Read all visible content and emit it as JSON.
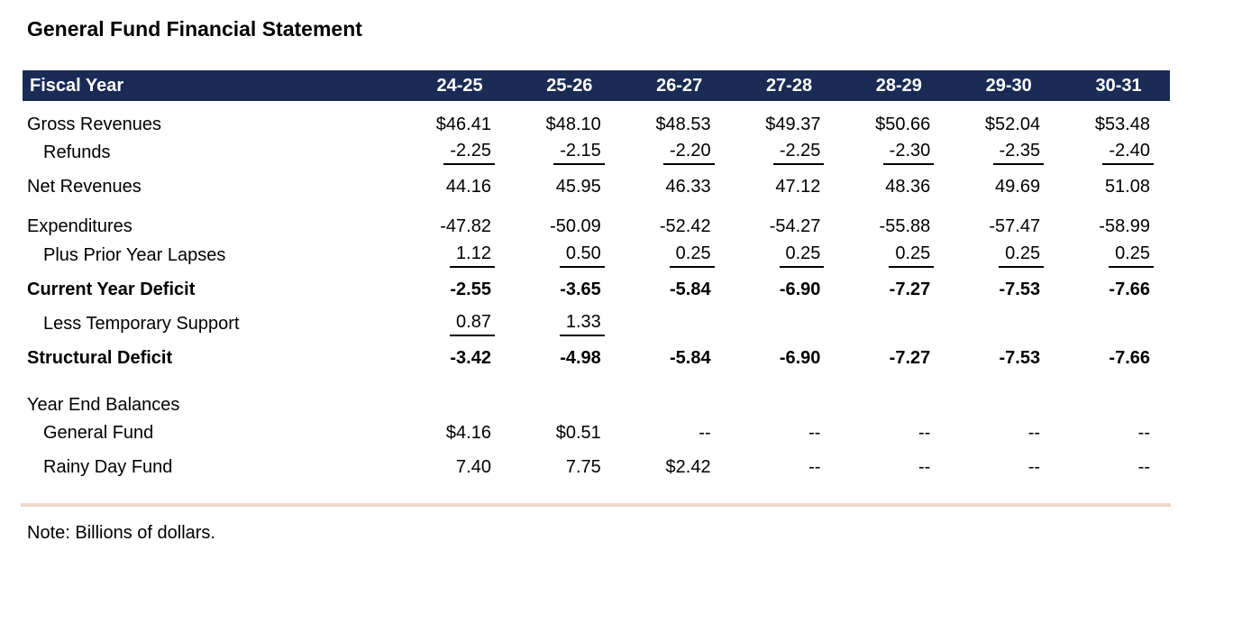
{
  "title": "General Fund Financial Statement",
  "note": "Note: Billions of dollars.",
  "colors": {
    "header_bg": "#1a2b55",
    "header_text": "#ffffff",
    "divider": "#eed7cf"
  },
  "table": {
    "header": {
      "label": "Fiscal Year",
      "years": [
        "24-25",
        "25-26",
        "26-27",
        "27-28",
        "28-29",
        "29-30",
        "30-31"
      ]
    },
    "rows": [
      {
        "label": "Gross Revenues",
        "values": [
          "$46.41",
          "$48.10",
          "$48.53",
          "$49.37",
          "$50.66",
          "$52.04",
          "$53.48"
        ]
      },
      {
        "label": "Refunds",
        "values": [
          "-2.25",
          "-2.15",
          "-2.20",
          "-2.25",
          "-2.30",
          "-2.35",
          "-2.40"
        ]
      },
      {
        "label": "Net Revenues",
        "values": [
          "44.16",
          "45.95",
          "46.33",
          "47.12",
          "48.36",
          "49.69",
          "51.08"
        ]
      },
      {
        "label": "Expenditures",
        "values": [
          "-47.82",
          "-50.09",
          "-52.42",
          "-54.27",
          "-55.88",
          "-57.47",
          "-58.99"
        ]
      },
      {
        "label": "Plus Prior Year Lapses",
        "values": [
          "1.12",
          "0.50",
          "0.25",
          "0.25",
          "0.25",
          "0.25",
          "0.25"
        ]
      },
      {
        "label": "Current Year Deficit",
        "values": [
          "-2.55",
          "-3.65",
          "-5.84",
          "-6.90",
          "-7.27",
          "-7.53",
          "-7.66"
        ]
      },
      {
        "label": "Less Temporary Support",
        "values": [
          "0.87",
          "1.33",
          "",
          "",
          "",
          "",
          ""
        ]
      },
      {
        "label": "Structural Deficit",
        "values": [
          "-3.42",
          "-4.98",
          "-5.84",
          "-6.90",
          "-7.27",
          "-7.53",
          "-7.66"
        ]
      },
      {
        "label": "Year End Balances",
        "values": [
          "",
          "",
          "",
          "",
          "",
          "",
          ""
        ]
      },
      {
        "label": "General Fund",
        "values": [
          "$4.16",
          "$0.51",
          "--",
          "--",
          "--",
          "--",
          "--"
        ]
      },
      {
        "label": "Rainy Day Fund",
        "values": [
          "7.40",
          "7.75",
          "$2.42",
          "--",
          "--",
          "--",
          "--"
        ]
      }
    ]
  }
}
